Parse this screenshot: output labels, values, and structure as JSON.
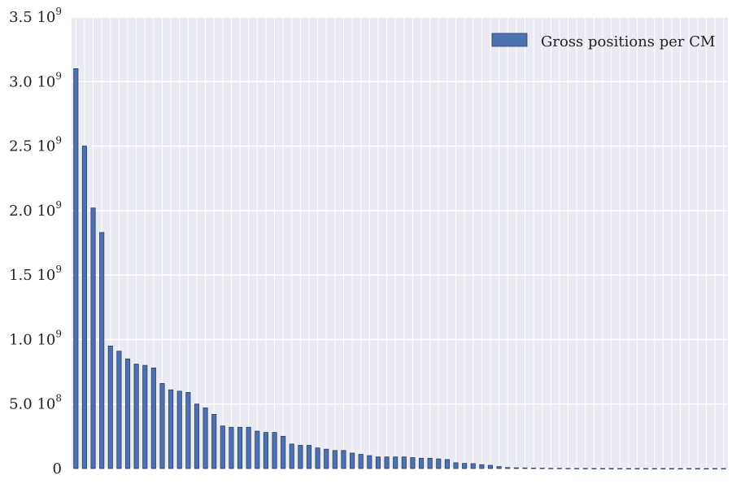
{
  "chart_data": {
    "type": "bar",
    "title": "",
    "xlabel": "",
    "ylabel": "",
    "ylim": [
      0,
      3500000000
    ],
    "grid": true,
    "legend_placement": "top-right",
    "colors": {
      "bar": "#4c72b0",
      "bar_edge": "#2a3f66",
      "plot_bg": "#eaeaf2",
      "grid": "#ffffff"
    },
    "y_ticks": [
      {
        "value": 0,
        "mantissa": "0",
        "exp": ""
      },
      {
        "value": 500000000,
        "mantissa": "5.0 10",
        "exp": "8"
      },
      {
        "value": 1000000000,
        "mantissa": "1.0 10",
        "exp": "9"
      },
      {
        "value": 1500000000,
        "mantissa": "1.5 10",
        "exp": "9"
      },
      {
        "value": 2000000000,
        "mantissa": "2.0 10",
        "exp": "9"
      },
      {
        "value": 2500000000,
        "mantissa": "2.5 10",
        "exp": "9"
      },
      {
        "value": 3000000000,
        "mantissa": "3.0 10",
        "exp": "9"
      },
      {
        "value": 3500000000,
        "mantissa": "3.5 10",
        "exp": "9"
      }
    ],
    "series": [
      {
        "name": "Gross positions per CM",
        "values": [
          3100000000,
          2500000000,
          2020000000,
          1830000000,
          950000000,
          910000000,
          850000000,
          810000000,
          800000000,
          780000000,
          660000000,
          610000000,
          600000000,
          590000000,
          500000000,
          470000000,
          420000000,
          330000000,
          320000000,
          320000000,
          320000000,
          290000000,
          280000000,
          280000000,
          250000000,
          190000000,
          180000000,
          180000000,
          160000000,
          150000000,
          140000000,
          140000000,
          120000000,
          110000000,
          100000000,
          90000000,
          90000000,
          90000000,
          90000000,
          85000000,
          80000000,
          80000000,
          75000000,
          70000000,
          45000000,
          40000000,
          38000000,
          30000000,
          25000000,
          15000000,
          8000000,
          6000000,
          5000000,
          4000000,
          3000000,
          2000000,
          2000000,
          1500000,
          1200000,
          1000000,
          800000,
          700000,
          600000,
          500000,
          400000,
          350000,
          300000,
          250000,
          200000,
          180000,
          150000,
          120000,
          100000,
          80000,
          60000,
          50000
        ]
      }
    ]
  }
}
